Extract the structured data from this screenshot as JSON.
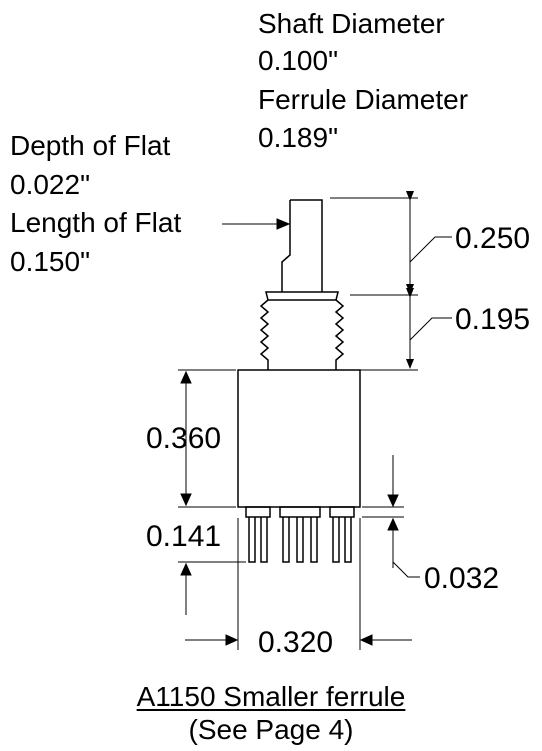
{
  "notes": {
    "shaft_diameter_label": "Shaft Diameter",
    "shaft_diameter_value": "0.100\"",
    "ferrule_diameter_label": "Ferrule Diameter",
    "ferrule_diameter_value": "0.189\"",
    "depth_of_flat_label": "Depth of Flat",
    "depth_of_flat_value": "0.022\"",
    "length_of_flat_label": "Length of Flat",
    "length_of_flat_value": "0.150\""
  },
  "dimensions": {
    "shaft_length": "0.250",
    "thread_length": "0.195",
    "body_height": "0.360",
    "pin_length": "0.141",
    "standoff": "0.032",
    "body_width": "0.320"
  },
  "caption": {
    "title": "A1150 Smaller ferrule",
    "subtitle": "(See Page 4)"
  }
}
